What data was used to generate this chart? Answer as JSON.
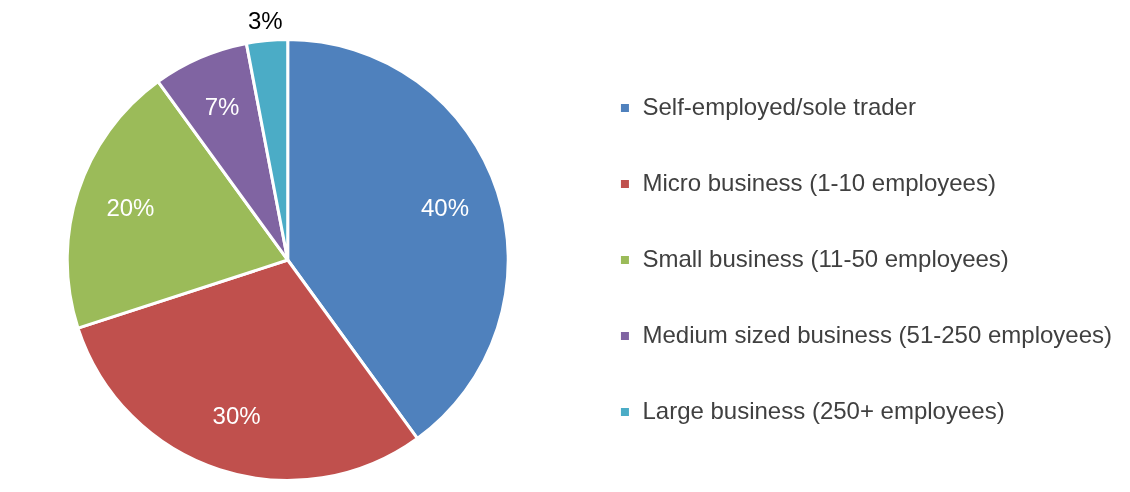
{
  "chart_data": {
    "type": "pie",
    "categories": [
      "Self-employed/sole trader",
      "Micro business (1-10 employees)",
      "Small business (11-50 employees)",
      "Medium sized business (51-250 employees)",
      "Large business (250+ employees)"
    ],
    "values": [
      40,
      30,
      20,
      7,
      3
    ],
    "value_labels": [
      "40%",
      "30%",
      "20%",
      "7%",
      "3%"
    ],
    "colors": [
      "#4f81bd",
      "#c0504d",
      "#9bbb59",
      "#8064a2",
      "#4bacc6"
    ],
    "legend": "right"
  }
}
